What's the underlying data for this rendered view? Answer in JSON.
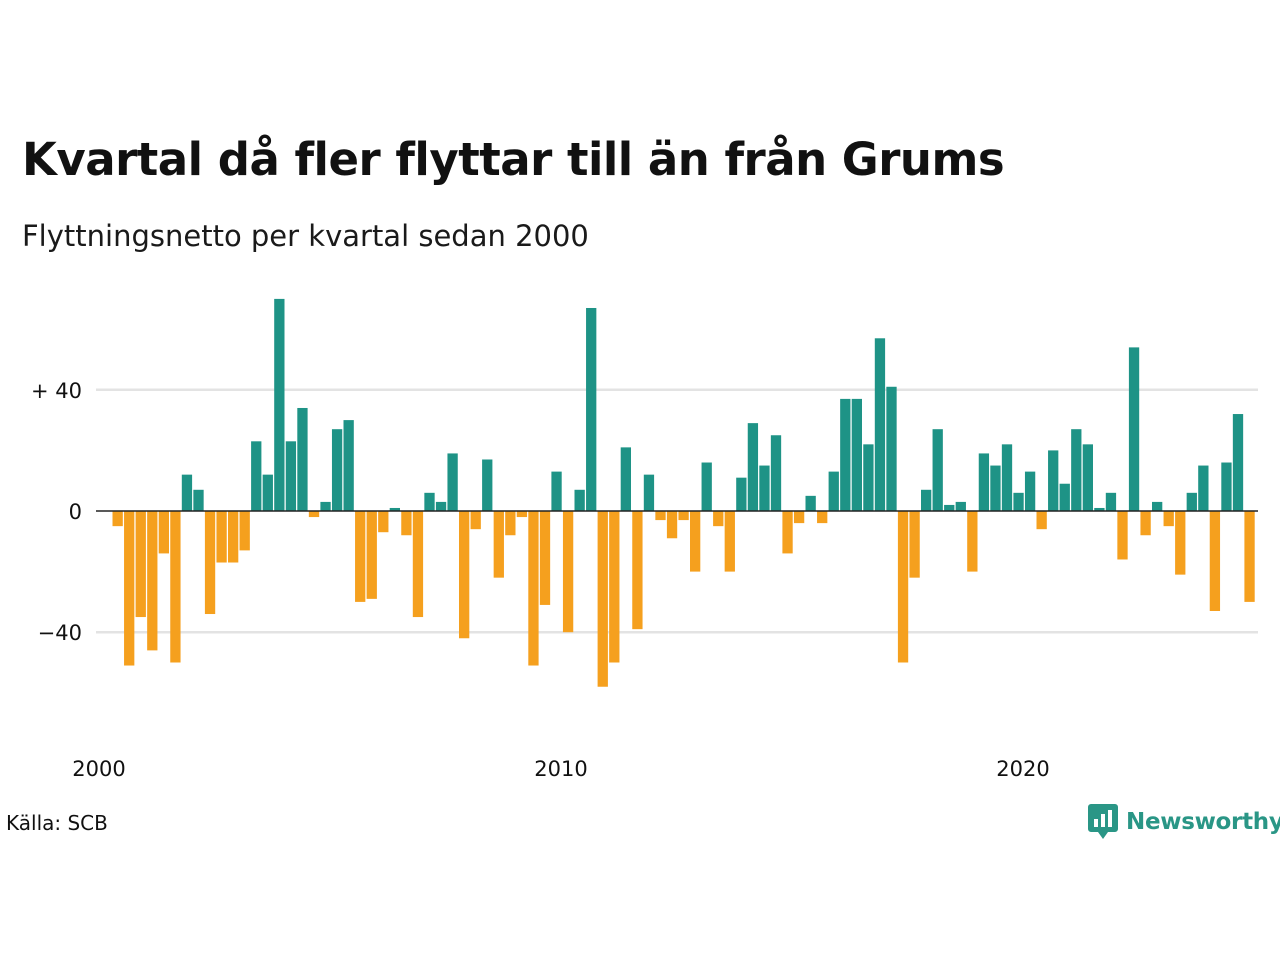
{
  "header": {
    "title": "Kvartal då fler flyttar till än från Grums",
    "subtitle": "Flyttningsnetto per kvartal sedan 2000"
  },
  "footer": {
    "source": "Källa: SCB",
    "brand": "Newsworthy",
    "brand_icon": "newsworthy-logo-icon"
  },
  "colors": {
    "positive": "#1e9386",
    "negative": "#f5a01e",
    "grid": "#e3e3e3",
    "baseline": "#222222",
    "brand": "#2a9686"
  },
  "chart_data": {
    "type": "bar",
    "title": "Kvartal då fler flyttar till än från Grums",
    "subtitle": "Flyttningsnetto per kvartal sedan 2000",
    "xlabel": "",
    "ylabel": "",
    "x_start_year": 2000,
    "periods_per_year": 4,
    "xticks": [
      "2000",
      "2010",
      "2020"
    ],
    "yticks": [
      {
        "value": 40,
        "label": "+ 40"
      },
      {
        "value": 0,
        "label": "0"
      },
      {
        "value": -40,
        "label": "−40"
      }
    ],
    "ylim": [
      -75,
      75
    ],
    "grid": true,
    "values": [
      -5,
      -51,
      -35,
      -46,
      -14,
      -50,
      12,
      7,
      -34,
      -17,
      -17,
      -13,
      23,
      12,
      70,
      23,
      34,
      -2,
      3,
      27,
      30,
      -30,
      -29,
      -7,
      1,
      -8,
      -35,
      6,
      3,
      19,
      -42,
      -6,
      17,
      -22,
      -8,
      -2,
      -51,
      -31,
      13,
      -40,
      7,
      67,
      -58,
      -50,
      21,
      -39,
      12,
      -3,
      -9,
      -3,
      -20,
      16,
      -5,
      -20,
      11,
      29,
      15,
      25,
      -14,
      -4,
      5,
      -4,
      13,
      37,
      37,
      22,
      57,
      41,
      -50,
      -22,
      7,
      27,
      2,
      3,
      -20,
      19,
      15,
      22,
      6,
      13,
      -6,
      20,
      9,
      27,
      22,
      1,
      6,
      -16,
      54,
      -8,
      3,
      -5,
      -21,
      6,
      15,
      -33,
      16,
      32,
      -30
    ]
  }
}
